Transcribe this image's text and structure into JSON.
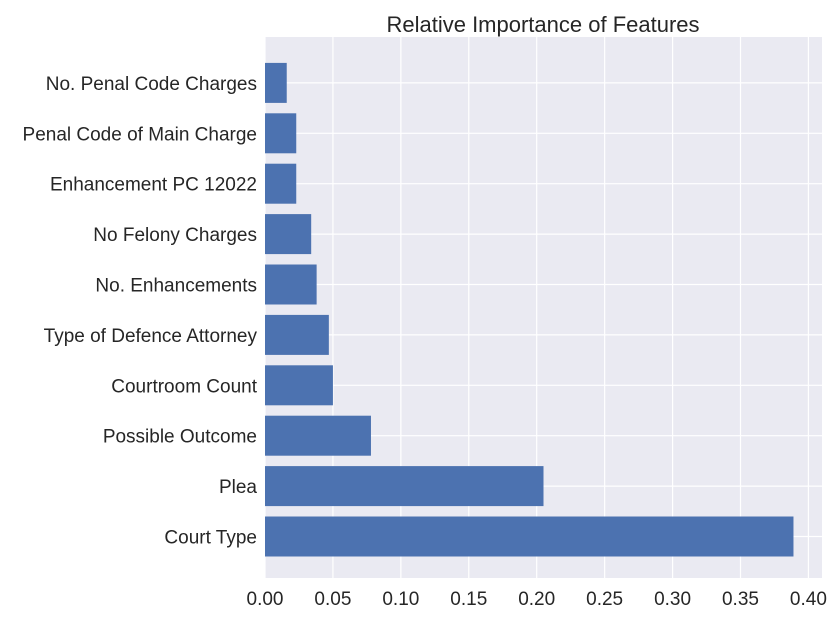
{
  "chart_data": {
    "type": "bar",
    "orientation": "horizontal",
    "title": "Relative Importance of Features",
    "xlabel": "",
    "ylabel": "",
    "categories": [
      "Court Type",
      "Plea",
      "Possible Outcome",
      "Courtroom Count",
      "Type of Defence Attorney",
      "No. Enhancements",
      "No Felony Charges",
      "Enhancement PC 12022",
      "Penal Code of Main Charge",
      "No. Penal Code Charges"
    ],
    "values": [
      0.389,
      0.205,
      0.078,
      0.05,
      0.047,
      0.038,
      0.034,
      0.023,
      0.023,
      0.016
    ],
    "xlim": [
      0.0,
      0.41
    ],
    "xticks": [
      "0.00",
      "0.05",
      "0.10",
      "0.15",
      "0.20",
      "0.25",
      "0.30",
      "0.35",
      "0.40"
    ],
    "grid": true,
    "legend": "none",
    "colors": {
      "bar": "#4c72b0",
      "background": "#eaeaf2",
      "grid": "#ffffff",
      "text": "#262626"
    }
  }
}
